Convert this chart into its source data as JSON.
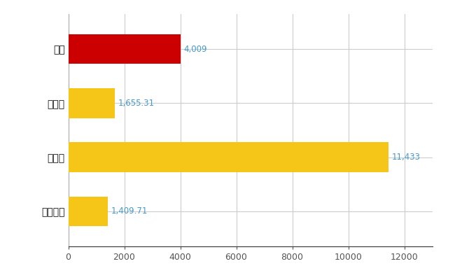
{
  "categories": [
    "葯区",
    "県平均",
    "県最大",
    "全国平均"
  ],
  "values": [
    4009,
    1655.31,
    11433,
    1409.71
  ],
  "bar_colors": [
    "#cc0000",
    "#f5c518",
    "#f5c518",
    "#f5c518"
  ],
  "value_labels": [
    "4,009",
    "1,655.31",
    "11,433",
    "1,409.71"
  ],
  "value_label_color": "#4499cc",
  "xlim": [
    0,
    13000
  ],
  "xticks": [
    0,
    2000,
    4000,
    6000,
    8000,
    10000,
    12000
  ],
  "background_color": "#ffffff",
  "grid_color": "#cccccc",
  "bar_height": 0.55,
  "label_fontsize": 10,
  "tick_fontsize": 9,
  "value_label_fontsize": 8.5,
  "figsize": [
    6.5,
    4.0
  ],
  "dpi": 100
}
